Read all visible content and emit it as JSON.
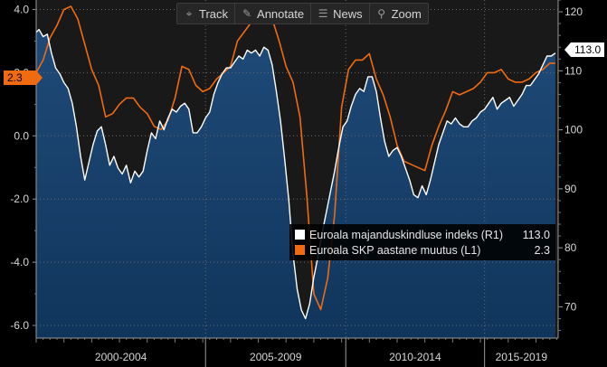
{
  "toolbar": {
    "track_label": "Track",
    "annotate_label": "Annotate",
    "news_label": "News",
    "zoom_label": "Zoom"
  },
  "legend": {
    "items": [
      {
        "label": "Euroala majanduskindluse indeks (R1)",
        "value": "113.0",
        "color": "#ffffff"
      },
      {
        "label": "Euroala SKP aastane muutus (L1)",
        "value": "2.3",
        "color": "#f06a10"
      }
    ]
  },
  "last_value_flags": {
    "right": "113.0",
    "left": "2.3"
  },
  "chart_data": {
    "type": "line",
    "x_ticks": [
      "2000-2004",
      "2005-2009",
      "2010-2014",
      "2015-2019"
    ],
    "x_range": [
      1999.0,
      2017.8
    ],
    "left_axis": {
      "ticks": [
        "4.0",
        "2.0",
        "0.0",
        "-2.0",
        "-4.0",
        "-6.0"
      ],
      "range": [
        -6.4,
        4.3
      ]
    },
    "right_axis": {
      "ticks": [
        "120",
        "110",
        "100",
        "90",
        "80",
        "70"
      ],
      "range": [
        64.7,
        122.0
      ]
    },
    "grid": true,
    "colors": {
      "index": "#ffffff",
      "gdp": "#f06a10",
      "area_fill": "#10355c",
      "plot_bg": "#191919"
    },
    "series": [
      {
        "name": "Euroala majanduskindluse indeks (R1)",
        "axis": "right",
        "x": [
          1999.0,
          1999.1,
          1999.25,
          1999.4,
          1999.55,
          1999.7,
          1999.85,
          2000.0,
          2000.15,
          2000.3,
          2000.45,
          2000.6,
          2000.75,
          2000.9,
          2001.05,
          2001.2,
          2001.35,
          2001.5,
          2001.65,
          2001.8,
          2001.95,
          2002.1,
          2002.25,
          2002.4,
          2002.55,
          2002.7,
          2002.85,
          2003.0,
          2003.15,
          2003.3,
          2003.45,
          2003.6,
          2003.75,
          2003.9,
          2004.05,
          2004.2,
          2004.35,
          2004.5,
          2004.65,
          2004.8,
          2004.95,
          2005.1,
          2005.25,
          2005.4,
          2005.55,
          2005.7,
          2005.85,
          2006.0,
          2006.15,
          2006.3,
          2006.45,
          2006.6,
          2006.75,
          2006.9,
          2007.05,
          2007.2,
          2007.35,
          2007.5,
          2007.65,
          2007.8,
          2007.95,
          2008.1,
          2008.25,
          2008.4,
          2008.55,
          2008.7,
          2008.85,
          2009.0,
          2009.15,
          2009.3,
          2009.45,
          2009.6,
          2009.75,
          2009.9,
          2010.05,
          2010.2,
          2010.35,
          2010.5,
          2010.65,
          2010.8,
          2010.95,
          2011.1,
          2011.25,
          2011.4,
          2011.55,
          2011.7,
          2011.85,
          2012.0,
          2012.15,
          2012.3,
          2012.45,
          2012.6,
          2012.75,
          2012.9,
          2013.05,
          2013.2,
          2013.35,
          2013.5,
          2013.65,
          2013.8,
          2013.95,
          2014.1,
          2014.25,
          2014.4,
          2014.55,
          2014.7,
          2014.85,
          2015.0,
          2015.15,
          2015.3,
          2015.45,
          2015.6,
          2015.75,
          2015.9,
          2016.05,
          2016.2,
          2016.35,
          2016.5,
          2016.65,
          2016.8,
          2016.95,
          2017.1,
          2017.25,
          2017.4,
          2017.55,
          2017.7
        ],
        "values": [
          116.5,
          117.0,
          115.8,
          116.2,
          113.0,
          110.5,
          109.5,
          108.0,
          107.0,
          104.5,
          100.5,
          95.5,
          91.5,
          94.5,
          97.5,
          99.8,
          100.5,
          97.5,
          94.0,
          95.5,
          93.5,
          92.5,
          94.0,
          91.0,
          93.0,
          92.0,
          93.0,
          96.5,
          99.5,
          98.5,
          101.5,
          100.0,
          102.0,
          103.5,
          103.0,
          104.0,
          104.5,
          103.5,
          99.5,
          99.5,
          100.5,
          102.0,
          103.0,
          106.0,
          108.0,
          109.5,
          110.5,
          110.5,
          111.5,
          112.5,
          112.0,
          113.5,
          113.0,
          113.5,
          112.5,
          114.0,
          113.5,
          111.0,
          106.5,
          101.5,
          95.0,
          88.0,
          79.0,
          73.0,
          69.5,
          68.0,
          70.5,
          75.0,
          78.5,
          82.5,
          86.0,
          89.5,
          93.0,
          97.0,
          100.5,
          101.5,
          104.0,
          106.0,
          107.0,
          106.5,
          109.0,
          109.0,
          106.5,
          102.0,
          98.0,
          95.5,
          96.5,
          97.0,
          95.5,
          93.5,
          91.5,
          89.0,
          88.5,
          90.5,
          89.0,
          91.5,
          94.5,
          97.5,
          99.5,
          101.5,
          101.0,
          102.0,
          101.0,
          100.5,
          100.5,
          101.5,
          102.0,
          103.0,
          103.5,
          104.5,
          105.5,
          103.5,
          104.5,
          105.0,
          105.5,
          104.0,
          105.0,
          106.0,
          107.5,
          107.5,
          108.5,
          109.5,
          111.0,
          112.5,
          112.5,
          113.0
        ]
      },
      {
        "name": "Euroala SKP aastane muutus (L1)",
        "axis": "left",
        "x": [
          1999.0,
          1999.25,
          1999.5,
          1999.75,
          2000.0,
          2000.25,
          2000.5,
          2000.75,
          2001.0,
          2001.25,
          2001.5,
          2001.75,
          2002.0,
          2002.25,
          2002.5,
          2002.75,
          2003.0,
          2003.25,
          2003.5,
          2003.75,
          2004.0,
          2004.25,
          2004.5,
          2004.75,
          2005.0,
          2005.25,
          2005.5,
          2005.75,
          2006.0,
          2006.25,
          2006.5,
          2006.75,
          2007.0,
          2007.25,
          2007.5,
          2007.75,
          2008.0,
          2008.25,
          2008.5,
          2008.75,
          2009.0,
          2009.25,
          2009.5,
          2009.75,
          2010.0,
          2010.25,
          2010.5,
          2010.75,
          2011.0,
          2011.25,
          2011.5,
          2011.75,
          2012.0,
          2012.25,
          2012.5,
          2012.75,
          2013.0,
          2013.25,
          2013.5,
          2013.75,
          2014.0,
          2014.25,
          2014.5,
          2014.75,
          2015.0,
          2015.25,
          2015.5,
          2015.75,
          2016.0,
          2016.25,
          2016.5,
          2016.75,
          2017.0,
          2017.25,
          2017.5,
          2017.7
        ],
        "values": [
          2.0,
          2.4,
          3.1,
          3.5,
          4.0,
          4.1,
          3.7,
          2.9,
          2.1,
          1.6,
          0.6,
          0.7,
          1.0,
          1.2,
          1.2,
          0.9,
          0.7,
          0.3,
          0.2,
          0.5,
          1.2,
          2.2,
          2.1,
          1.6,
          1.4,
          1.5,
          1.8,
          2.0,
          2.2,
          3.0,
          3.3,
          3.6,
          3.6,
          3.9,
          3.7,
          3.0,
          2.2,
          1.7,
          0.6,
          -1.9,
          -5.0,
          -5.5,
          -4.5,
          -2.5,
          0.9,
          2.1,
          2.4,
          2.4,
          2.6,
          1.8,
          1.3,
          0.6,
          -0.3,
          -0.8,
          -0.9,
          -1.0,
          -1.1,
          -0.3,
          0.3,
          0.8,
          1.4,
          1.3,
          1.4,
          1.5,
          1.7,
          2.0,
          2.0,
          2.1,
          1.8,
          1.7,
          1.7,
          1.8,
          2.0,
          2.1,
          2.3,
          2.3
        ]
      }
    ]
  }
}
